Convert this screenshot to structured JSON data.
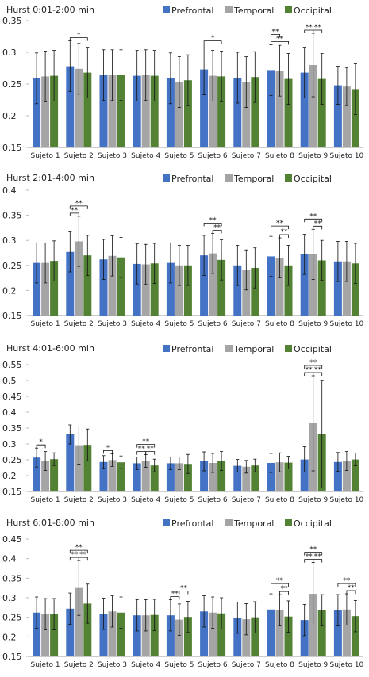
{
  "colors": {
    "Prefrontal": "#4472C4",
    "Temporal": "#A5A5A5",
    "Occipital": "#548235"
  },
  "chart_data": [
    {
      "type": "bar",
      "title": "Hurst 0:01-2:00 min",
      "categories": [
        "Sujeto 1",
        "Sujeto 2",
        "Sujeto 3",
        "Sujeto 4",
        "Sujeto 5",
        "Sujeto 6",
        "Sujeto 7",
        "Sujeto 8",
        "Sujeto 9",
        "Sujeto 10"
      ],
      "legend": [
        "Prefrontal",
        "Temporal",
        "Occipital"
      ],
      "yticks": [
        "0.15",
        "0.2",
        "0.25",
        "0.3",
        "0.35"
      ],
      "ylim": [
        0.15,
        0.35
      ],
      "series": [
        {
          "name": "Prefrontal",
          "values": [
            0.259,
            0.278,
            0.264,
            0.263,
            0.259,
            0.273,
            0.26,
            0.272,
            0.268,
            0.248
          ],
          "err": [
            0.04,
            0.04,
            0.04,
            0.04,
            0.04,
            0.04,
            0.04,
            0.04,
            0.04,
            0.03
          ]
        },
        {
          "name": "Temporal",
          "values": [
            0.262,
            0.274,
            0.264,
            0.264,
            0.253,
            0.263,
            0.253,
            0.271,
            0.28,
            0.246
          ],
          "err": [
            0.04,
            0.04,
            0.04,
            0.04,
            0.04,
            0.04,
            0.04,
            0.04,
            0.05,
            0.03
          ]
        },
        {
          "name": "Occipital",
          "values": [
            0.263,
            0.268,
            0.264,
            0.263,
            0.256,
            0.262,
            0.261,
            0.258,
            0.258,
            0.242
          ],
          "err": [
            0.04,
            0.04,
            0.04,
            0.04,
            0.04,
            0.04,
            0.04,
            0.04,
            0.04,
            0.04
          ]
        }
      ],
      "sig": [
        {
          "cat": 1,
          "from": 0,
          "to": 2,
          "label": "*",
          "level": 0
        },
        {
          "cat": 5,
          "from": 0,
          "to": 2,
          "label": "*",
          "level": 0
        },
        {
          "cat": 7,
          "from": 0,
          "to": 1,
          "label": "**",
          "level": 1
        },
        {
          "cat": 7,
          "from": 0,
          "to": 2,
          "label": "**",
          "level": 0
        },
        {
          "cat": 8,
          "from": 0,
          "to": 1,
          "label": "**",
          "level": 0
        },
        {
          "cat": 8,
          "from": 1,
          "to": 2,
          "label": "**",
          "level": 0
        }
      ]
    },
    {
      "type": "bar",
      "title": "Hurst 2:01-4:00 min",
      "categories": [
        "Sujeto 1",
        "Sujeto 2",
        "Sujeto 3",
        "Sujeto 4",
        "Sujeto 5",
        "Sujeto 6",
        "Sujeto 7",
        "Sujeto 8",
        "Sujeto 9",
        "Sujeto 10"
      ],
      "legend": [
        "Prefrontal",
        "Temporal",
        "Occipital"
      ],
      "yticks": [
        "0.15",
        "0.2",
        "0.25",
        "0.3",
        "0.35",
        "0.4"
      ],
      "ylim": [
        0.15,
        0.4
      ],
      "series": [
        {
          "name": "Prefrontal",
          "values": [
            0.255,
            0.277,
            0.262,
            0.253,
            0.255,
            0.27,
            0.25,
            0.268,
            0.272,
            0.258
          ],
          "err": [
            0.04,
            0.04,
            0.04,
            0.04,
            0.04,
            0.04,
            0.04,
            0.04,
            0.04,
            0.04
          ]
        },
        {
          "name": "Temporal",
          "values": [
            0.255,
            0.298,
            0.269,
            0.252,
            0.25,
            0.274,
            0.241,
            0.265,
            0.272,
            0.258
          ],
          "err": [
            0.04,
            0.05,
            0.04,
            0.04,
            0.04,
            0.04,
            0.04,
            0.04,
            0.05,
            0.04
          ]
        },
        {
          "name": "Occipital",
          "values": [
            0.259,
            0.27,
            0.266,
            0.254,
            0.25,
            0.261,
            0.245,
            0.25,
            0.26,
            0.254
          ],
          "err": [
            0.04,
            0.04,
            0.04,
            0.04,
            0.04,
            0.04,
            0.04,
            0.04,
            0.04,
            0.04
          ]
        }
      ],
      "sig": [
        {
          "cat": 1,
          "from": 0,
          "to": 1,
          "label": "**",
          "level": 0
        },
        {
          "cat": 1,
          "from": 0,
          "to": 2,
          "label": "**",
          "level": 1
        },
        {
          "cat": 5,
          "from": 1,
          "to": 2,
          "label": "**",
          "level": 0
        },
        {
          "cat": 5,
          "from": 0,
          "to": 2,
          "label": "**",
          "level": 1
        },
        {
          "cat": 7,
          "from": 1,
          "to": 2,
          "label": "**",
          "level": 0
        },
        {
          "cat": 7,
          "from": 0,
          "to": 2,
          "label": "**",
          "level": 1
        },
        {
          "cat": 8,
          "from": 1,
          "to": 2,
          "label": "**",
          "level": 0
        },
        {
          "cat": 8,
          "from": 0,
          "to": 2,
          "label": "**",
          "level": 1
        }
      ]
    },
    {
      "type": "bar",
      "title": "Hurst 4:01-6:00 min",
      "categories": [
        "Sujeto 1",
        "Sujeto 2",
        "Sujeto 3",
        "Sujeto 4",
        "Sujeto 5",
        "Sujeto 6",
        "Sujeto 7",
        "Sujeto 8",
        "Sujeto 9",
        "Sujeto 10"
      ],
      "legend": [
        "Prefrontal",
        "Temporal",
        "Occipital"
      ],
      "yticks": [
        "0.15",
        "0.2",
        "0.25",
        "0.3",
        "0.35",
        "0.4",
        "0.45",
        "0.5",
        "0.55"
      ],
      "ylim": [
        0.15,
        0.55
      ],
      "series": [
        {
          "name": "Prefrontal",
          "values": [
            0.257,
            0.33,
            0.243,
            0.239,
            0.239,
            0.245,
            0.231,
            0.24,
            0.251,
            0.243
          ],
          "err": [
            0.03,
            0.03,
            0.02,
            0.02,
            0.02,
            0.03,
            0.02,
            0.03,
            0.04,
            0.03
          ]
        },
        {
          "name": "Temporal",
          "values": [
            0.246,
            0.296,
            0.249,
            0.246,
            0.239,
            0.24,
            0.228,
            0.242,
            0.365,
            0.246
          ],
          "err": [
            0.03,
            0.06,
            0.02,
            0.02,
            0.02,
            0.03,
            0.02,
            0.03,
            0.15,
            0.03
          ]
        },
        {
          "name": "Occipital",
          "values": [
            0.252,
            0.297,
            0.242,
            0.232,
            0.237,
            0.246,
            0.232,
            0.241,
            0.331,
            0.251
          ],
          "err": [
            0.02,
            0.05,
            0.02,
            0.02,
            0.03,
            0.03,
            0.02,
            0.02,
            0.17,
            0.02
          ]
        }
      ],
      "sig": [
        {
          "cat": 0,
          "from": 0,
          "to": 1,
          "label": "*",
          "level": 0
        },
        {
          "cat": 2,
          "from": 0,
          "to": 1,
          "label": "*",
          "level": 0
        },
        {
          "cat": 3,
          "from": 0,
          "to": 1,
          "label": "**",
          "level": 0
        },
        {
          "cat": 3,
          "from": 1,
          "to": 2,
          "label": "**",
          "level": 0
        },
        {
          "cat": 3,
          "from": 0,
          "to": 2,
          "label": "**",
          "level": 1
        },
        {
          "cat": 8,
          "from": 0,
          "to": 1,
          "label": "**",
          "level": 0
        },
        {
          "cat": 8,
          "from": 1,
          "to": 2,
          "label": "**",
          "level": 0
        },
        {
          "cat": 8,
          "from": 0,
          "to": 2,
          "label": "**",
          "level": 1
        }
      ]
    },
    {
      "type": "bar",
      "title": "Hurst 6:01-8:00 min",
      "categories": [
        "Sujeto 1",
        "Sujeto 2",
        "Sujeto 3",
        "Sujeto 4",
        "Sujeto 5",
        "Sujeto 6",
        "Sujeto 7",
        "Sujeto 8",
        "Sujeto 9",
        "Sujeto 10"
      ],
      "legend": [
        "Prefrontal",
        "Temporal",
        "Occipital"
      ],
      "yticks": [
        "0.15",
        "0.2",
        "0.25",
        "0.3",
        "0.35",
        "0.4",
        "0.45"
      ],
      "ylim": [
        0.15,
        0.45
      ],
      "series": [
        {
          "name": "Prefrontal",
          "values": [
            0.262,
            0.272,
            0.259,
            0.255,
            0.255,
            0.265,
            0.249,
            0.27,
            0.243,
            0.268
          ],
          "err": [
            0.04,
            0.04,
            0.04,
            0.04,
            0.04,
            0.04,
            0.04,
            0.04,
            0.04,
            0.04
          ]
        },
        {
          "name": "Temporal",
          "values": [
            0.258,
            0.325,
            0.265,
            0.255,
            0.244,
            0.262,
            0.245,
            0.268,
            0.31,
            0.27
          ],
          "err": [
            0.04,
            0.07,
            0.04,
            0.04,
            0.04,
            0.04,
            0.04,
            0.04,
            0.08,
            0.04
          ]
        },
        {
          "name": "Occipital",
          "values": [
            0.258,
            0.285,
            0.262,
            0.256,
            0.251,
            0.26,
            0.25,
            0.252,
            0.268,
            0.253
          ],
          "err": [
            0.04,
            0.05,
            0.04,
            0.04,
            0.04,
            0.04,
            0.04,
            0.04,
            0.04,
            0.04
          ]
        }
      ],
      "sig": [
        {
          "cat": 1,
          "from": 0,
          "to": 1,
          "label": "**",
          "level": 0
        },
        {
          "cat": 1,
          "from": 1,
          "to": 2,
          "label": "**",
          "level": 0
        },
        {
          "cat": 1,
          "from": 0,
          "to": 2,
          "label": "**",
          "level": 1
        },
        {
          "cat": 4,
          "from": 0,
          "to": 1,
          "label": "**",
          "level": 0
        },
        {
          "cat": 4,
          "from": 1,
          "to": 2,
          "label": "**",
          "level": 1
        },
        {
          "cat": 7,
          "from": 1,
          "to": 2,
          "label": "**",
          "level": 0
        },
        {
          "cat": 7,
          "from": 0,
          "to": 2,
          "label": "**",
          "level": 1
        },
        {
          "cat": 8,
          "from": 0,
          "to": 1,
          "label": "**",
          "level": 0
        },
        {
          "cat": 8,
          "from": 1,
          "to": 2,
          "label": "**",
          "level": 0
        },
        {
          "cat": 8,
          "from": 0,
          "to": 2,
          "label": "**",
          "level": 1
        },
        {
          "cat": 9,
          "from": 1,
          "to": 2,
          "label": "**",
          "level": 0
        },
        {
          "cat": 9,
          "from": 0,
          "to": 2,
          "label": "**",
          "level": 1
        }
      ]
    }
  ]
}
